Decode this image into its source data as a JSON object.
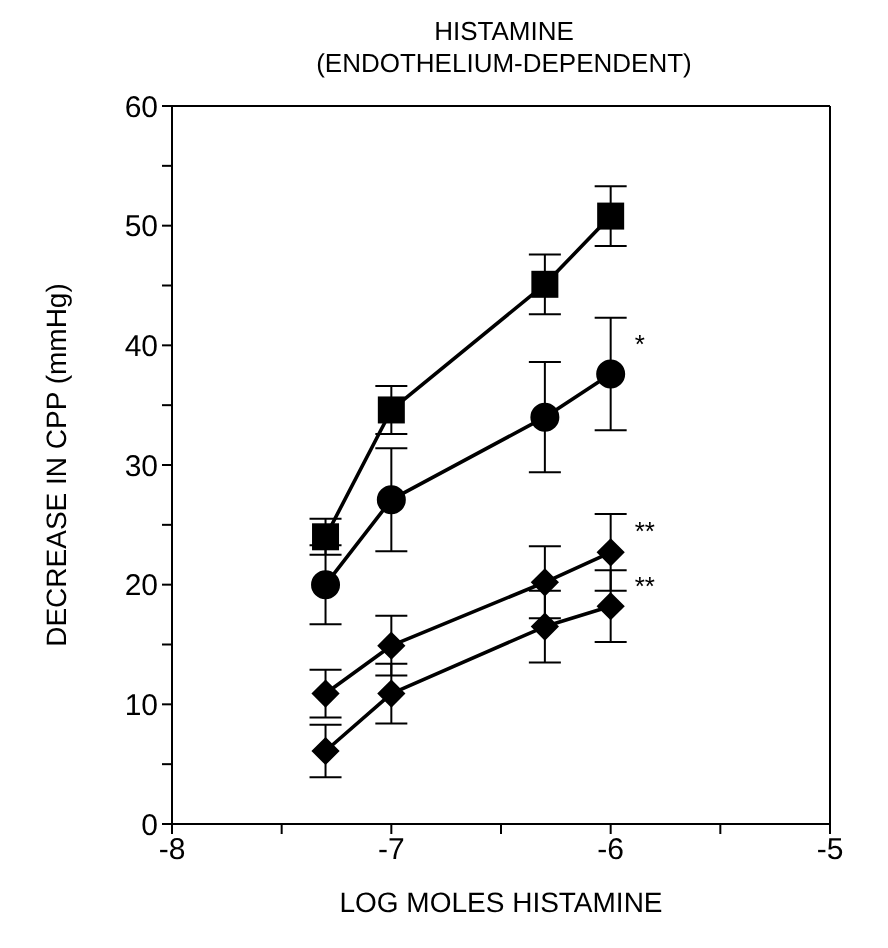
{
  "chart_data": {
    "type": "line",
    "title": "HISTAMINE",
    "subtitle": "(ENDOTHELIUM-DEPENDENT)",
    "xlabel": "LOG MOLES HISTAMINE",
    "ylabel": "DECREASE IN CPP (mmHg)",
    "x": [
      -7.3,
      -7,
      -6.3,
      -6
    ],
    "series": [
      {
        "color": "#000000",
        "marker": "square",
        "values": [
          24,
          34.6,
          45.1,
          50.8
        ],
        "errors": [
          1.5,
          2,
          2.5,
          2.5
        ]
      },
      {
        "color": "#000000",
        "marker": "circle",
        "values": [
          20,
          27.1,
          34,
          37.6
        ],
        "errors": [
          3.3,
          4.3,
          4.6,
          4.7
        ]
      },
      {
        "color": "#000000",
        "marker": "diamond",
        "values": [
          10.9,
          14.9,
          20.2,
          22.7
        ],
        "errors": [
          2,
          2.5,
          3,
          3.2
        ]
      },
      {
        "color": "#000000",
        "marker": "diamond",
        "values": [
          6.1,
          10.9,
          16.5,
          18.2
        ],
        "errors": [
          2.2,
          2.5,
          3,
          3
        ]
      }
    ],
    "annotations": [
      "*",
      "**",
      "**"
    ],
    "xlim": [
      -8,
      -5
    ],
    "xticks": [
      -8,
      {
        "value": -7.5,
        "label": null
      },
      -7,
      {
        "value": -6.5,
        "label": null
      },
      -6,
      {
        "value": -5.5,
        "label": null
      },
      -5
    ],
    "ylim": [
      0,
      60
    ],
    "yticks": [
      0,
      {
        "value": 5,
        "label": null
      },
      10,
      {
        "value": 15,
        "label": null
      },
      20,
      {
        "value": 25,
        "label": null
      },
      30,
      {
        "value": 35,
        "label": null
      },
      40,
      {
        "value": 45,
        "label": null
      },
      50,
      {
        "value": 55,
        "label": null
      },
      60
    ],
    "grid": false,
    "line_style": "solid"
  }
}
